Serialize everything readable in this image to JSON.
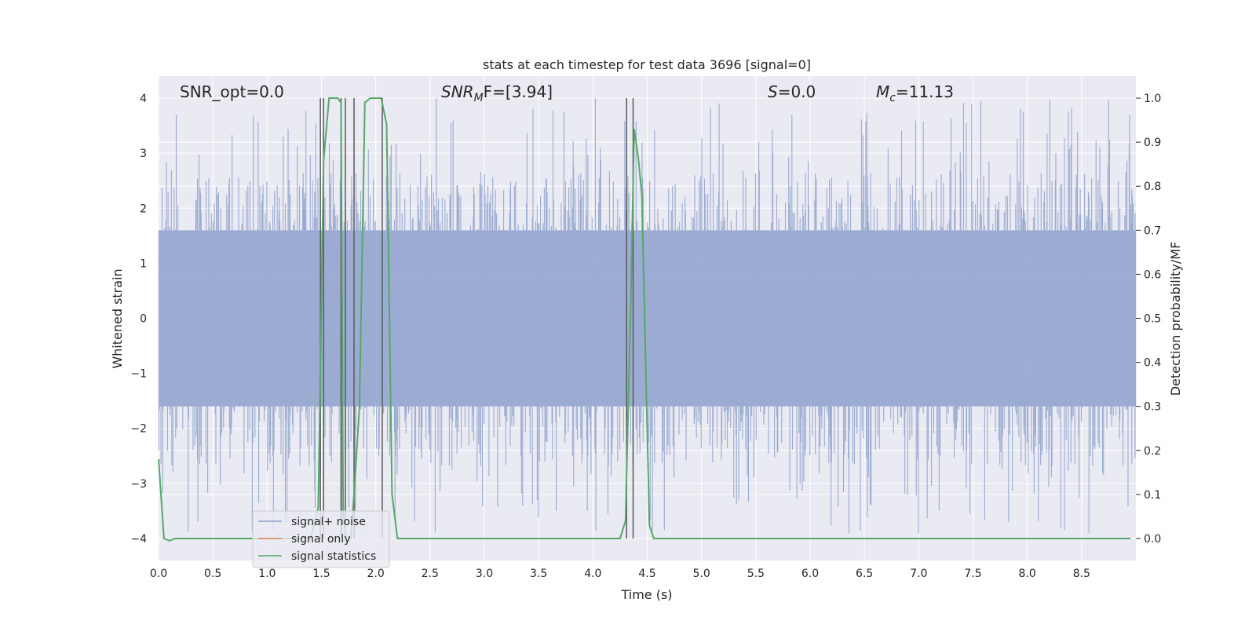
{
  "chart_data": {
    "type": "line",
    "title": "stats at each timestep for test data 3696 [signal=0]",
    "xlabel": "Time (s)",
    "ylabel_left": "Whitened strain",
    "ylabel_right": "Detection probability/MF",
    "xlim": [
      0,
      9
    ],
    "ylim_left": [
      -4.4,
      4.4
    ],
    "ylim_right": [
      -0.05,
      1.05
    ],
    "x_ticks": [
      "0.0",
      "0.5",
      "1.0",
      "1.5",
      "2.0",
      "2.5",
      "3.0",
      "3.5",
      "4.0",
      "4.5",
      "5.0",
      "5.5",
      "6.0",
      "6.5",
      "7.0",
      "7.5",
      "8.0",
      "8.5"
    ],
    "y_left_ticks": [
      "4",
      "3",
      "2",
      "1",
      "0",
      "−1",
      "−2",
      "−3",
      "−4"
    ],
    "y_right_ticks": [
      "1.0",
      "0.9",
      "0.8",
      "0.7",
      "0.6",
      "0.5",
      "0.4",
      "0.3",
      "0.2",
      "0.1",
      "0.0"
    ],
    "annotations": {
      "snr_opt": "SNR_opt=0.0",
      "snr_mf_main": "SNR",
      "snr_mf_sub": "M",
      "snr_mf_rest": "F=[3.94]",
      "s_main": "S",
      "s_rest": "=0.0",
      "mc_main": "M",
      "mc_sub": "c",
      "mc_rest": "=11.13"
    },
    "series": [
      {
        "name": "signal+ noise",
        "color": "#8da0cb",
        "style": "noise trace, envelope approx ±1.6 with peaks to about ±4",
        "amplitude_core": 1.6,
        "peak_max": 4.0
      },
      {
        "name": "signal only",
        "color": "#dd8452",
        "x": [],
        "y": []
      },
      {
        "name": "signal statistics",
        "color": "#55a868",
        "axis": "right",
        "x": [
          0.0,
          0.05,
          0.1,
          0.15,
          1.4,
          1.47,
          1.52,
          1.57,
          1.65,
          1.68,
          1.7,
          1.73,
          1.77,
          1.8,
          1.85,
          1.9,
          1.95,
          2.05,
          2.1,
          2.15,
          2.2,
          4.2,
          4.25,
          4.3,
          4.35,
          4.38,
          4.42,
          4.45,
          4.52,
          4.56,
          4.6,
          8.95
        ],
        "y": [
          0.18,
          0.0,
          -0.005,
          0.0,
          0.0,
          0.07,
          0.86,
          1.0,
          1.0,
          0.99,
          0.05,
          0.0,
          0.0,
          0.1,
          0.3,
          0.99,
          1.0,
          1.0,
          0.94,
          0.1,
          0.0,
          0.0,
          0.0,
          0.04,
          0.55,
          0.93,
          0.86,
          0.78,
          0.03,
          0.0,
          0.0,
          0.0
        ]
      }
    ],
    "vertical_lines": {
      "color": "#5a5a5a",
      "x": [
        1.49,
        1.52,
        1.68,
        1.72,
        1.8,
        2.06,
        4.31,
        4.37
      ],
      "ymin": -4.0,
      "ymax": 4.0
    },
    "grid": true,
    "legend_position": "lower-left"
  }
}
